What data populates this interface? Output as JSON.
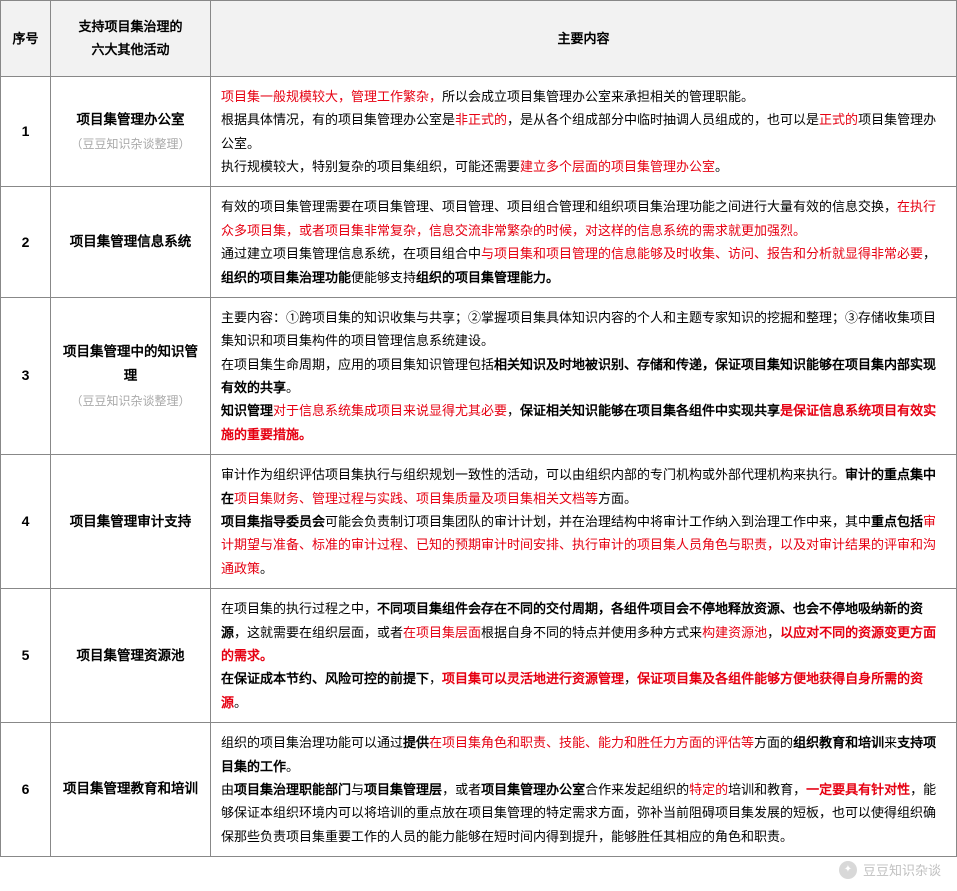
{
  "header": {
    "col_num": "序号",
    "col_activity": "支持项目集治理的\n六大其他活动",
    "col_content": "主要内容"
  },
  "subnote": "（豆豆知识杂谈整理）",
  "rows": [
    {
      "num": "1",
      "activity": "项目集管理办公室",
      "has_subnote": true,
      "content": [
        {
          "t": "项目集一般规模较大，管理工作繁杂，",
          "red": true
        },
        {
          "t": "所以会成立项目集管理办公室来承担相关的管理职能。"
        },
        {
          "t": "\n"
        },
        {
          "t": "根据具体情况，有的项目集管理办公室是"
        },
        {
          "t": "非正式的",
          "red": true
        },
        {
          "t": "，是从各个组成部分中临时抽调人员组成的，也可以是"
        },
        {
          "t": "正式的",
          "red": true
        },
        {
          "t": "项目集管理办公室。"
        },
        {
          "t": "\n"
        },
        {
          "t": "执行规模较大，特别复杂的项目集组织，可能还需要"
        },
        {
          "t": "建立多个层面的项目集管理办公室",
          "red": true
        },
        {
          "t": "。"
        }
      ]
    },
    {
      "num": "2",
      "activity": "项目集管理信息系统",
      "has_subnote": false,
      "content": [
        {
          "t": "有效的项目集管理需要在项目集管理、项目管理、项目组合管理和组织项目集治理功能之间进行大量有效的信息交换，"
        },
        {
          "t": "在执行众多项目集，或者项目集非常复杂，信息交流非常繁杂的时候，对这样的信息系统的需求就更加强烈。",
          "red": true
        },
        {
          "t": "\n"
        },
        {
          "t": "通过建立项目集管理信息系统，在项目组合中"
        },
        {
          "t": "与项目集和项目管理的信息能够及时收集、访问、报告和分析就显得非常必要",
          "red": true
        },
        {
          "t": "，"
        },
        {
          "t": "组织的项目集治理功能",
          "bold": true
        },
        {
          "t": "便能够支持"
        },
        {
          "t": "组织的项目集管理能力。",
          "bold": true
        }
      ]
    },
    {
      "num": "3",
      "activity": "项目集管理中的知识管理",
      "has_subnote": true,
      "content": [
        {
          "t": "主要内容：①跨项目集的知识收集与共享；②掌握项目集具体知识内容的个人和主题专家知识的挖掘和整理；③存储收集项目集知识和项目集构件的项目管理信息系统建设。"
        },
        {
          "t": "\n"
        },
        {
          "t": "在项目集生命周期，应用的项目集知识管理包括"
        },
        {
          "t": "相关知识及时地被识别、存储和传递，保证项目集知识能够在项目集内部实现有效的共享",
          "bold": true
        },
        {
          "t": "。"
        },
        {
          "t": "\n"
        },
        {
          "t": "知识管理",
          "bold": true
        },
        {
          "t": "对于信息系统集成项目来说显得尤其必要",
          "red": true
        },
        {
          "t": "，"
        },
        {
          "t": "保证相关知识能够在项目集各组件中实现共享",
          "bold": true
        },
        {
          "t": "是保证信息系统项目有效实施的重要措施。",
          "red": true,
          "bold": true
        }
      ]
    },
    {
      "num": "4",
      "activity": "项目集管理审计支持",
      "has_subnote": false,
      "content": [
        {
          "t": "审计作为组织评估项目集执行与组织规划一致性的活动，可以由组织内部的专门机构或外部代理机构来执行。"
        },
        {
          "t": "审计的重点集中在",
          "bold": true
        },
        {
          "t": "项目集财务、管理过程与实践、项目集质量及项目集相关文档等",
          "red": true
        },
        {
          "t": "方面。"
        },
        {
          "t": "\n"
        },
        {
          "t": "项目集指导委员会",
          "bold": true
        },
        {
          "t": "可能会负责制订项目集团队的审计计划，并在治理结构中将审计工作纳入到治理工作中来，其中"
        },
        {
          "t": "重点包括",
          "bold": true
        },
        {
          "t": "审计期望与准备、标准的审计过程、已知的预期审计时间安排、执行审计的项目集人员角色与职责，以及对审计结果的评审和沟通政策",
          "red": true
        },
        {
          "t": "。"
        }
      ]
    },
    {
      "num": "5",
      "activity": "项目集管理资源池",
      "has_subnote": false,
      "content": [
        {
          "t": "在项目集的执行过程之中，"
        },
        {
          "t": "不同项目集组件会存在不同的交付周期，各组件项目会不停地释放资源、也会不停地吸纳新的资源",
          "bold": true
        },
        {
          "t": "，这就需要在组织层面，或者"
        },
        {
          "t": "在项目集层面",
          "red": true
        },
        {
          "t": "根据自身不同的特点并使用多种方式来"
        },
        {
          "t": "构建资源池",
          "red": true
        },
        {
          "t": "，"
        },
        {
          "t": "以应对不同的资源变更方面的需求。",
          "red": true,
          "bold": true
        },
        {
          "t": "\n"
        },
        {
          "t": "在保证成本节约、风险可控的前提下",
          "bold": true
        },
        {
          "t": "，"
        },
        {
          "t": "项目集可以灵活地进行资源管理",
          "red": true,
          "bold": true
        },
        {
          "t": "，"
        },
        {
          "t": "保证项目集及各组件能够方便地获得自身所需的资源",
          "red": true,
          "bold": true
        },
        {
          "t": "。"
        }
      ]
    },
    {
      "num": "6",
      "activity": "项目集管理教育和培训",
      "has_subnote": false,
      "content": [
        {
          "t": "组织的项目集治理功能可以通过"
        },
        {
          "t": "提供",
          "bold": true
        },
        {
          "t": "在项目集角色和职责、技能、能力和胜任力方面的评估等",
          "red": true
        },
        {
          "t": "方面的"
        },
        {
          "t": "组织教育和培训",
          "bold": true
        },
        {
          "t": "来"
        },
        {
          "t": "支持项目集的工作",
          "bold": true
        },
        {
          "t": "。"
        },
        {
          "t": "\n"
        },
        {
          "t": "由"
        },
        {
          "t": "项目集治理职能部门",
          "bold": true
        },
        {
          "t": "与"
        },
        {
          "t": "项目集管理层",
          "bold": true
        },
        {
          "t": "，或者"
        },
        {
          "t": "项目集管理办公室",
          "bold": true
        },
        {
          "t": "合作来发起组织的"
        },
        {
          "t": "特定的",
          "red": true
        },
        {
          "t": "培训和教育，"
        },
        {
          "t": "一定要具有针对性",
          "red": true,
          "bold": true
        },
        {
          "t": "，能够保证本组织环境内可以将培训的重点放在项目集管理的特定需求方面，弥补当前阻碍项目集发展的短板，也可以使得组织确保那些负责项目集重要工作的人员的能力能够在短时间内得到提升，能够胜任其相应的角色和职责。"
        }
      ]
    }
  ],
  "watermark": "豆豆知识杂谈",
  "colors": {
    "red": "#e60012",
    "border": "#888888",
    "header_bg": "#f2f2f2",
    "subnote": "#aaaaaa",
    "watermark": "#c0c0c0"
  }
}
